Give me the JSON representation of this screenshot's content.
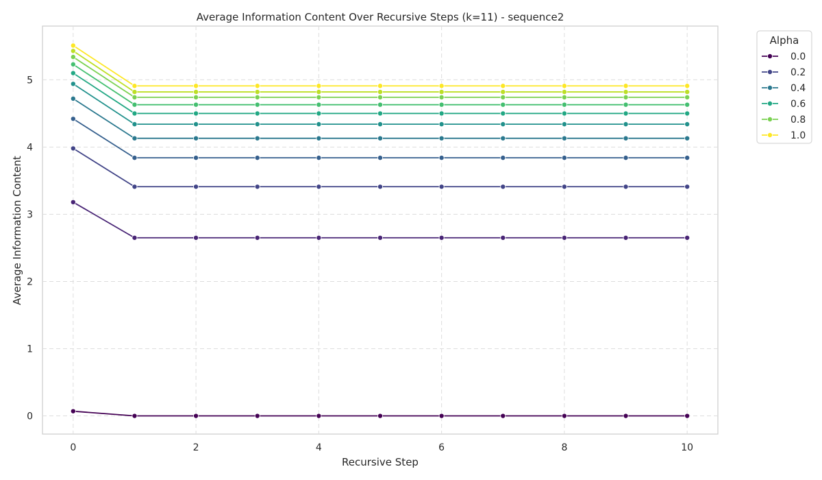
{
  "chart_data": {
    "type": "line",
    "title": "Average Information Content Over Recursive Steps (k=11) - sequence2",
    "xlabel": "Recursive Step",
    "ylabel": "Average Information Content",
    "xlim": [
      -0.5,
      10.5
    ],
    "ylim": [
      -0.27,
      5.8
    ],
    "x_ticks": [
      0,
      2,
      4,
      6,
      8,
      10
    ],
    "y_ticks": [
      0,
      1,
      2,
      3,
      4,
      5
    ],
    "grid": true,
    "legend": {
      "title": "Alpha",
      "placement": "outside top-right"
    },
    "x": [
      0,
      1,
      2,
      3,
      4,
      5,
      6,
      7,
      8,
      9,
      10
    ],
    "series": [
      {
        "name": "0.0",
        "color": "#440154",
        "values": [
          0.07,
          0.0,
          0.0,
          0.0,
          0.0,
          0.0,
          0.0,
          0.0,
          0.0,
          0.0,
          0.0
        ]
      },
      {
        "name": "",
        "color": "#482475",
        "values": [
          3.18,
          2.65,
          2.65,
          2.65,
          2.65,
          2.65,
          2.65,
          2.65,
          2.65,
          2.65,
          2.65
        ]
      },
      {
        "name": "0.2",
        "color": "#414487",
        "values": [
          3.98,
          3.41,
          3.41,
          3.41,
          3.41,
          3.41,
          3.41,
          3.41,
          3.41,
          3.41,
          3.41
        ]
      },
      {
        "name": "",
        "color": "#355f8d",
        "values": [
          4.42,
          3.84,
          3.84,
          3.84,
          3.84,
          3.84,
          3.84,
          3.84,
          3.84,
          3.84,
          3.84
        ]
      },
      {
        "name": "0.4",
        "color": "#2a788e",
        "values": [
          4.72,
          4.13,
          4.13,
          4.13,
          4.13,
          4.13,
          4.13,
          4.13,
          4.13,
          4.13,
          4.13
        ]
      },
      {
        "name": "",
        "color": "#21918c",
        "values": [
          4.94,
          4.34,
          4.34,
          4.34,
          4.34,
          4.34,
          4.34,
          4.34,
          4.34,
          4.34,
          4.34
        ]
      },
      {
        "name": "0.6",
        "color": "#22a884",
        "values": [
          5.1,
          4.5,
          4.5,
          4.5,
          4.5,
          4.5,
          4.5,
          4.5,
          4.5,
          4.5,
          4.5
        ]
      },
      {
        "name": "",
        "color": "#44bf70",
        "values": [
          5.23,
          4.63,
          4.63,
          4.63,
          4.63,
          4.63,
          4.63,
          4.63,
          4.63,
          4.63,
          4.63
        ]
      },
      {
        "name": "0.8",
        "color": "#7ad151",
        "values": [
          5.34,
          4.74,
          4.74,
          4.74,
          4.74,
          4.74,
          4.74,
          4.74,
          4.74,
          4.74,
          4.74
        ]
      },
      {
        "name": "",
        "color": "#bddf26",
        "values": [
          5.43,
          4.82,
          4.82,
          4.82,
          4.82,
          4.82,
          4.82,
          4.82,
          4.82,
          4.82,
          4.82
        ]
      },
      {
        "name": "1.0",
        "color": "#fde725",
        "values": [
          5.51,
          4.91,
          4.91,
          4.91,
          4.91,
          4.91,
          4.91,
          4.91,
          4.91,
          4.91,
          4.91
        ]
      }
    ]
  }
}
